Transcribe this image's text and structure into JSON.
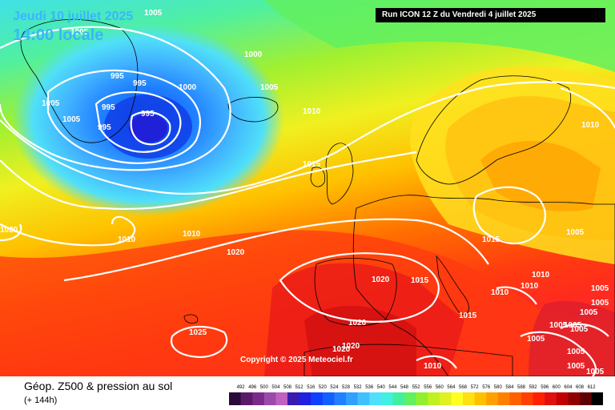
{
  "header": {
    "date_label": "Jeudi 10 juillet 2025",
    "time_label": "14:00 locale",
    "run_label": "Run ICON 12 Z du Vendredi 4 juillet 2025"
  },
  "copyright": "Copyright © 2025 Meteociel.fr",
  "footer": {
    "title": "Géop. Z500 & pression au sol",
    "subtitle": "(+ 144h)"
  },
  "legend": {
    "values": [
      "492",
      "496",
      "500",
      "504",
      "508",
      "512",
      "516",
      "520",
      "524",
      "528",
      "532",
      "536",
      "540",
      "544",
      "548",
      "552",
      "556",
      "560",
      "564",
      "568",
      "572",
      "576",
      "580",
      "584",
      "588",
      "592",
      "596",
      "600",
      "604",
      "608",
      "612"
    ],
    "colors": [
      "#2a0a3a",
      "#5a1a6a",
      "#7a2a8a",
      "#9a4aaa",
      "#c060c0",
      "#3a1ab0",
      "#2020e0",
      "#1040ff",
      "#1060ff",
      "#2080ff",
      "#30a0ff",
      "#40c0ff",
      "#50e0ff",
      "#40f0e0",
      "#40f0a0",
      "#60f060",
      "#90f030",
      "#c0f020",
      "#e0f020",
      "#ffff20",
      "#ffe010",
      "#ffc000",
      "#ffa000",
      "#ff8000",
      "#ff6000",
      "#ff4000",
      "#ff2000",
      "#e01010",
      "#c00000",
      "#900000",
      "#600000",
      "#000000"
    ]
  },
  "isobar_labels": [
    {
      "text": "1005"
    },
    {
      "text": "1005"
    },
    {
      "text": "1000"
    },
    {
      "text": "995"
    },
    {
      "text": "995"
    },
    {
      "text": "1000"
    },
    {
      "text": "1005"
    },
    {
      "text": "1005"
    },
    {
      "text": "995"
    },
    {
      "text": "995"
    },
    {
      "text": "1005"
    },
    {
      "text": "995"
    },
    {
      "text": "1010"
    },
    {
      "text": "1015"
    },
    {
      "text": "1010"
    },
    {
      "text": "1020"
    },
    {
      "text": "1010"
    },
    {
      "text": "1010"
    },
    {
      "text": "1020"
    },
    {
      "text": "1015"
    },
    {
      "text": "1020"
    },
    {
      "text": "1015"
    },
    {
      "text": "1005"
    },
    {
      "text": "1010"
    },
    {
      "text": "1010"
    },
    {
      "text": "1010"
    },
    {
      "text": "1015"
    },
    {
      "text": "1020"
    },
    {
      "text": "1020"
    },
    {
      "text": "1025"
    },
    {
      "text": "1020"
    },
    {
      "text": "1010"
    },
    {
      "text": "1005"
    },
    {
      "text": "1005"
    },
    {
      "text": "1005"
    },
    {
      "text": "1005"
    },
    {
      "text": "1005"
    },
    {
      "text": "1005"
    },
    {
      "text": "1005"
    },
    {
      "text": "1005"
    },
    {
      "text": "1005"
    },
    {
      "text": "1005"
    }
  ]
}
